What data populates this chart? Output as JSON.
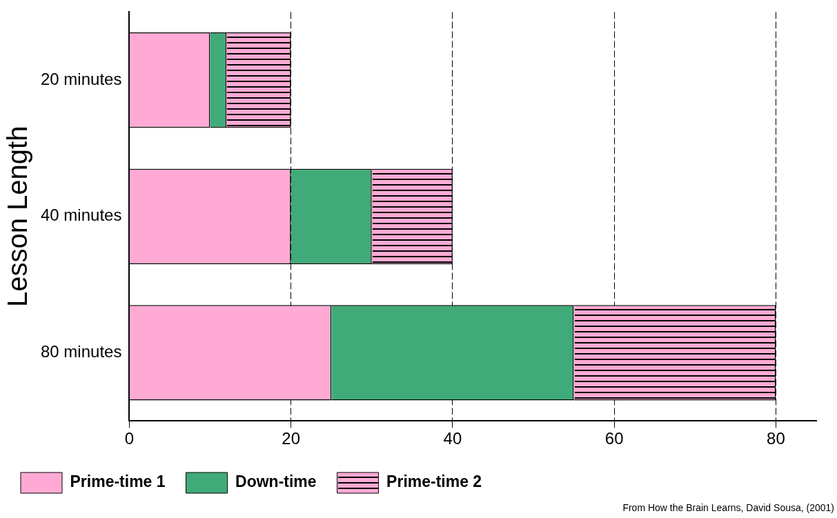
{
  "chart_data": {
    "type": "bar",
    "orientation": "horizontal",
    "stacked": true,
    "ylabel": "Lesson Length",
    "categories": [
      "20 minutes",
      "40 minutes",
      "80 minutes"
    ],
    "series": [
      {
        "name": "Prime-time 1",
        "color": "#ffaad4",
        "values": [
          10,
          20,
          25
        ]
      },
      {
        "name": "Down-time",
        "color": "#40ab78",
        "values": [
          2,
          10,
          30
        ]
      },
      {
        "name": "Prime-time 2",
        "color": "#ffaad4",
        "values": [
          8,
          10,
          25
        ]
      }
    ],
    "xlim": [
      0,
      85
    ],
    "xticks": [
      0,
      20,
      40,
      60,
      80
    ],
    "grid": "x",
    "legend": "bottom",
    "annotations": [
      "From How the Brain Learns, David Sousa, (2001)"
    ]
  }
}
